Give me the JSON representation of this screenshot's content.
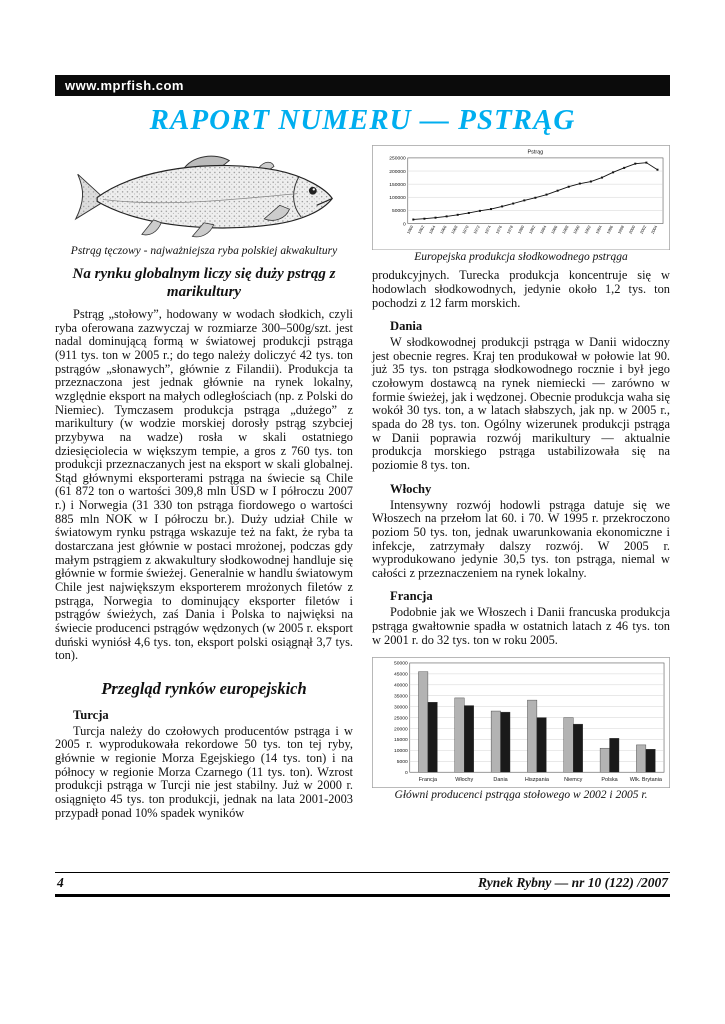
{
  "banner": {
    "url": "www.mprfish.com"
  },
  "title": "RAPORT NUMERU — PSTRĄG",
  "colors": {
    "title_accent": "#00aeef",
    "bar_2002": "#b3b3b3",
    "bar_2005": "#1a1a1a"
  },
  "left": {
    "fish_caption": "Pstrąg tęczowy - najważniejsza ryba polskiej akwakultury",
    "heading": "Na rynku globalnym liczy się duży pstrąg z marikultury",
    "para": "Pstrąg „stołowy”, hodowany w wodach słodkich, czyli ryba oferowana zazwyczaj w rozmiarze 300–500g/szt. jest nadal dominującą formą w światowej produkcji pstrąga (911 tys. ton w 2005 r.; do tego należy doliczyć 42 tys. ton pstrągów „słonawych”, głównie z Filandii). Produkcja ta przeznaczona jest jednak głównie na rynek lokalny, względnie eksport na małych odległościach (np. z Polski do Niemiec). Tymczasem produkcja pstrąga „dużego” z marikultury (w wodzie morskiej dorosły pstrąg szybciej przybywa na wadze) rosła w skali ostatniego dziesięciolecia w większym tempie, a gros z 760 tys. ton produkcji przeznaczanych jest na eksport w skali globalnej. Stąd głównymi eksporterami pstrąga na świecie są Chile (61 872 ton o wartości 309,8 mln USD w I półroczu 2007 r.) i Norwegia (31 330 ton pstrąga fiordowego o wartości 885 mln NOK w I półroczu br.). Duży udział Chile w światowym rynku pstrąga wskazuje też na fakt, że ryba ta dostarczana jest głównie w postaci mrożonej, podczas gdy małym pstrągiem z akwakultury słodkowodnej handluje się głównie w formie świeżej. Generalnie w handlu światowym Chile jest największym eksporterem mrożonych filetów z pstrąga, Norwegia to dominujący eksporter filetów i pstrągów świeżych, zaś Dania i Polska to najwięksi na świecie producenci pstrągów wędzonych (w 2005 r. eksport duński wyniósł 4,6 tys. ton, eksport polski osiągnął 3,7 tys. ton).",
    "section_heading": "Przegląd rynków europejskich",
    "subsection": "Turcja",
    "para_turcja": "Turcja należy do czołowych producentów pstrąga i w 2005 r. wyprodukowała rekordowe 50 tys. ton tej ryby, głównie w regionie Morza Egejskiego (14 tys. ton) i na północy w regionie Morza Czarnego (11 tys. ton). Wzrost produkcji pstrąga w Turcji nie jest stabilny. Już w 2000 r. osiągnięto 45 tys. ton produkcji, jednak na lata 2001-2003 przypadł ponad 10% spadek wyników"
  },
  "right": {
    "para_intro": "produkcyjnych. Turecka produkcja koncentruje się w hodowlach słodkowodnych, jedynie około 1,2 tys. ton pochodzi z 12 farm morskich.",
    "sections": [
      {
        "heading": "Dania",
        "text": "W słodkowodnej produkcji pstrąga w Danii widoczny jest obecnie regres. Kraj ten produkował w połowie lat 90. już 35 tys. ton pstrąga słodkowodnego rocznie i był jego czołowym dostawcą na rynek niemiecki — zarówno w formie świeżej, jak i wędzonej. Obecnie produkcja waha się wokół 30 tys. ton, a w latach słabszych, jak np. w 2005 r., spada do 28 tys. ton. Ogólny wizerunek produkcji pstrąga w Danii poprawia rozwój marikultury — aktualnie produkcja morskiego pstrąga ustabilizowała się na poziomie 8 tys. ton."
      },
      {
        "heading": "Włochy",
        "text": "Intensywny rozwój hodowli pstrąga datuje się we Włoszech na przełom lat 60. i 70. W 1995 r. przekroczono poziom 50 tys. ton, jednak uwarunkowania ekonomiczne i infekcje, zatrzymały dalszy rozwój. W 2005 r. wyprodukowano jedynie 30,5 tys. ton pstrąga, niemal w całości z przeznaczeniem na rynek lokalny."
      },
      {
        "heading": "Francja",
        "text": "Podobnie jak we Włoszech i Danii francuska produkcja pstrąga gwałtownie spadła w ostatnich latach z 46 tys. ton w 2001 r. do 32 tys. ton w roku 2005."
      }
    ]
  },
  "footer": {
    "page_number": "4",
    "journal": "Rynek Rybny — nr 10 (122) /2007"
  },
  "chart_data": [
    {
      "type": "line",
      "title": "Pstrąg",
      "caption": "Europejska produkcja słodkowodnego pstrąga",
      "xlabel": "",
      "ylabel": "",
      "grid": true,
      "legend_position": "none",
      "ylim": [
        0,
        250000
      ],
      "ytick_step": 50000,
      "x": [
        1960,
        1962,
        1964,
        1966,
        1968,
        1970,
        1972,
        1974,
        1976,
        1978,
        1980,
        1982,
        1984,
        1986,
        1988,
        1990,
        1992,
        1994,
        1996,
        1998,
        2000,
        2002,
        2004
      ],
      "series": [
        {
          "name": "Pstrąg",
          "values": [
            15000,
            18000,
            22000,
            27000,
            33000,
            40000,
            48000,
            55000,
            65000,
            76000,
            88000,
            98000,
            110000,
            125000,
            140000,
            152000,
            160000,
            175000,
            195000,
            212000,
            228000,
            232000,
            205000
          ]
        }
      ]
    },
    {
      "type": "bar",
      "title": "",
      "caption": "Główni producenci pstrąga stołowego w 2002 i 2005 r.",
      "xlabel": "",
      "ylabel": "",
      "grid": true,
      "legend_position": "none",
      "ylim": [
        0,
        50000
      ],
      "ytick_step": 5000,
      "categories": [
        "Francja",
        "Włochy",
        "Dania",
        "Hiszpania",
        "Niemcy",
        "Polska",
        "Wlk. Brytania"
      ],
      "series": [
        {
          "name": "2002",
          "color": "#b3b3b3",
          "values": [
            46000,
            34000,
            28000,
            33000,
            25000,
            11000,
            12500
          ]
        },
        {
          "name": "2005",
          "color": "#1a1a1a",
          "values": [
            32000,
            30500,
            27500,
            25000,
            22000,
            15500,
            10500
          ]
        }
      ]
    }
  ]
}
